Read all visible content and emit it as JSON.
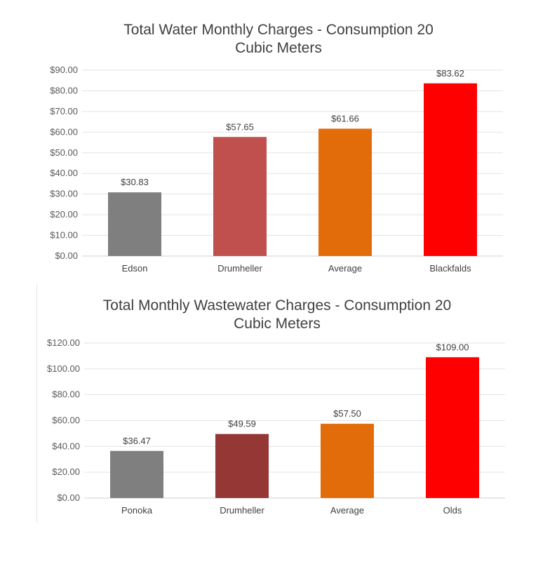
{
  "chart_data": [
    {
      "type": "bar",
      "title": "Total Water Monthly Charges - Consumption 20 Cubic Meters",
      "title_lines": [
        "Total Water Monthly Charges - Consumption 20",
        "Cubic Meters"
      ],
      "categories": [
        "Edson",
        "Drumheller",
        "Average",
        "Blackfalds"
      ],
      "values": [
        30.83,
        57.65,
        61.66,
        83.62
      ],
      "data_labels": [
        "$30.83",
        "$57.65",
        "$61.66",
        "$83.62"
      ],
      "bar_colors": [
        "#7f7f7f",
        "#c0504d",
        "#e36c0a",
        "#ff0000"
      ],
      "ylim": [
        0,
        90
      ],
      "yticks": [
        0,
        10,
        20,
        30,
        40,
        50,
        60,
        70,
        80,
        90
      ],
      "ytick_labels": [
        "$0.00",
        "$10.00",
        "$20.00",
        "$30.00",
        "$40.00",
        "$50.00",
        "$60.00",
        "$70.00",
        "$80.00",
        "$90.00"
      ],
      "xlabel": "",
      "ylabel": "",
      "grid": true,
      "legend": "none"
    },
    {
      "type": "bar",
      "title": "Total Monthly Wastewater Charges - Consumption 20 Cubic Meters",
      "title_lines": [
        "Total Monthly Wastewater Charges - Consumption 20",
        "Cubic Meters"
      ],
      "categories": [
        "Ponoka",
        "Drumheller",
        "Average",
        "Olds"
      ],
      "values": [
        36.47,
        49.59,
        57.5,
        109.0
      ],
      "data_labels": [
        "$36.47",
        "$49.59",
        "$57.50",
        "$109.00"
      ],
      "bar_colors": [
        "#7f7f7f",
        "#953735",
        "#e36c0a",
        "#ff0000"
      ],
      "ylim": [
        0,
        120
      ],
      "yticks": [
        0,
        20,
        40,
        60,
        80,
        100,
        120
      ],
      "ytick_labels": [
        "$0.00",
        "$20.00",
        "$40.00",
        "$60.00",
        "$80.00",
        "$100.00",
        "$120.00"
      ],
      "xlabel": "",
      "ylabel": "",
      "grid": true,
      "legend": "none"
    }
  ]
}
